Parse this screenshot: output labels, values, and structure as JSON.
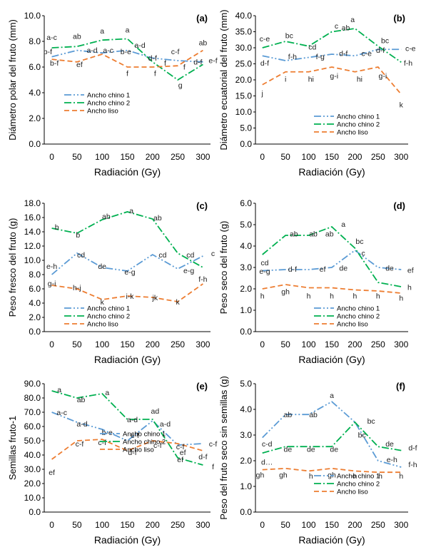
{
  "colors": {
    "chino1": "#5b9bd5",
    "chino2": "#00b050",
    "liso": "#ed7d31",
    "axis": "#000000"
  },
  "x_ticks": [
    0,
    50,
    100,
    150,
    200,
    250,
    300
  ],
  "chart_data": [
    {
      "id": "a",
      "type": "line",
      "panel_label": "(a)",
      "xlabel": "Radiación (Gy)",
      "ylabel": "Diámetro polar del fruto (mm)",
      "ylim": [
        0,
        10
      ],
      "yticks": [
        "0.0",
        "2.0",
        "4.0",
        "6.0",
        "8.0",
        "10.0"
      ],
      "x": [
        0,
        50,
        100,
        150,
        200,
        250,
        300
      ],
      "series": [
        {
          "name": "Ancho chino 1",
          "values": [
            6.8,
            7.3,
            7.1,
            7.3,
            6.7,
            6.5,
            6.4
          ]
        },
        {
          "name": "Ancho chino 2",
          "values": [
            7.5,
            7.6,
            8.1,
            8.2,
            6.4,
            5.0,
            6.2
          ]
        },
        {
          "name": "Ancho liso",
          "values": [
            6.6,
            6.4,
            7.0,
            6.0,
            6.0,
            6.1,
            7.3
          ]
        }
      ],
      "letters": [
        {
          "text": "a-c",
          "x": 0,
          "y": 8.1
        },
        {
          "text": "ab",
          "x": 50,
          "y": 8.2
        },
        {
          "text": "a",
          "x": 100,
          "y": 8.6
        },
        {
          "text": "a",
          "x": 150,
          "y": 8.7
        },
        {
          "text": "a-d",
          "x": 175,
          "y": 7.5
        },
        {
          "text": "c-f",
          "x": 245,
          "y": 7.0
        },
        {
          "text": "ab",
          "x": 300,
          "y": 7.7
        },
        {
          "text": "b-f",
          "x": -8,
          "y": 7.0
        },
        {
          "text": "a-d",
          "x": 80,
          "y": 7.1
        },
        {
          "text": "a-c",
          "x": 112,
          "y": 7.1
        },
        {
          "text": "b-e",
          "x": 147,
          "y": 7.0
        },
        {
          "text": "d-f",
          "x": 200,
          "y": 6.5
        },
        {
          "text": "f",
          "x": 225,
          "y": 6.1
        },
        {
          "text": "e-f",
          "x": 320,
          "y": 6.3
        },
        {
          "text": "d-f",
          "x": 290,
          "y": 6.2
        },
        {
          "text": "b-f",
          "x": 5,
          "y": 6.1
        },
        {
          "text": "ef",
          "x": 55,
          "y": 6.0
        },
        {
          "text": "f",
          "x": 150,
          "y": 5.3
        },
        {
          "text": "f",
          "x": 205,
          "y": 5.3
        },
        {
          "text": "g",
          "x": 255,
          "y": 4.4
        },
        {
          "text": "f",
          "x": 263,
          "y": 5.8
        }
      ],
      "legend": [
        "Ancho chino 1",
        "Ancho chino 2",
        "Ancho liso"
      ]
    },
    {
      "id": "b",
      "type": "line",
      "panel_label": "(b)",
      "xlabel": "Radiación (Gy)",
      "ylabel": "Diámetro ecuatorial del fruto (mm)",
      "ylim": [
        0,
        40
      ],
      "yticks": [
        "0.0",
        "5.0",
        "10.0",
        "15.0",
        "20.0",
        "25.0",
        "30.0",
        "35.0",
        "40.0"
      ],
      "x": [
        0,
        50,
        100,
        150,
        200,
        250,
        300
      ],
      "series": [
        {
          "name": "Ancho chino 1",
          "values": [
            27.5,
            26.0,
            27.0,
            28.0,
            27.5,
            29.5,
            29.5
          ]
        },
        {
          "name": "Ancho chino 2",
          "values": [
            30.0,
            32.0,
            30.5,
            35.0,
            36.0,
            30.5,
            25.5
          ]
        },
        {
          "name": "Ancho liso",
          "values": [
            18.5,
            22.5,
            22.5,
            24.0,
            22.5,
            24.0,
            15.5
          ]
        }
      ],
      "letters": [
        {
          "text": "c-e",
          "x": 5,
          "y": 32.0
        },
        {
          "text": "bc",
          "x": 58,
          "y": 33.0
        },
        {
          "text": "cd",
          "x": 108,
          "y": 29.5
        },
        {
          "text": "c",
          "x": 160,
          "y": 36.0
        },
        {
          "text": "ab",
          "x": 180,
          "y": 35.5
        },
        {
          "text": "a",
          "x": 195,
          "y": 38.0
        },
        {
          "text": "bc",
          "x": 265,
          "y": 31.5
        },
        {
          "text": "c-e",
          "x": 320,
          "y": 29.0
        },
        {
          "text": "d-f",
          "x": 255,
          "y": 28.5
        },
        {
          "text": "d-f",
          "x": 5,
          "y": 24.5
        },
        {
          "text": "f-h",
          "x": 65,
          "y": 26.5
        },
        {
          "text": "f-g",
          "x": 125,
          "y": 26.5
        },
        {
          "text": "d-f",
          "x": 175,
          "y": 27.5
        },
        {
          "text": "c-e",
          "x": 225,
          "y": 27.5
        },
        {
          "text": "f-h",
          "x": 315,
          "y": 24.5
        },
        {
          "text": "i",
          "x": 50,
          "y": 19.5
        },
        {
          "text": "hi",
          "x": 105,
          "y": 19.5
        },
        {
          "text": "g-i",
          "x": 155,
          "y": 20.5
        },
        {
          "text": "hi",
          "x": 210,
          "y": 19.5
        },
        {
          "text": "g-i",
          "x": 260,
          "y": 20.5
        },
        {
          "text": "j",
          "x": 0,
          "y": 15.0
        },
        {
          "text": "k",
          "x": 300,
          "y": 11.5
        }
      ],
      "legend": [
        "Ancho chino 1",
        "Ancho chino 2",
        "Ancho liso"
      ]
    },
    {
      "id": "c",
      "type": "line",
      "panel_label": "(c)",
      "xlabel": "Radiación (Gy)",
      "ylabel": "Peso fresco del fruto (g)",
      "ylim": [
        0,
        18
      ],
      "yticks": [
        "0.0",
        "2.0",
        "4.0",
        "6.0",
        "8.0",
        "10.0",
        "12.0",
        "14.0",
        "16.0",
        "18.0"
      ],
      "x": [
        0,
        50,
        100,
        150,
        200,
        250,
        300
      ],
      "series": [
        {
          "name": "Ancho chino 1",
          "values": [
            8.0,
            11.0,
            9.0,
            8.5,
            10.8,
            8.8,
            10.6
          ]
        },
        {
          "name": "Ancho chino 2",
          "values": [
            14.5,
            13.8,
            15.7,
            16.8,
            15.8,
            11.0,
            9.0
          ]
        },
        {
          "name": "Ancho liso",
          "values": [
            6.5,
            6.0,
            4.5,
            5.0,
            4.8,
            4.2,
            6.7
          ]
        }
      ],
      "letters": [
        {
          "text": "b",
          "x": 10,
          "y": 14.3
        },
        {
          "text": "b",
          "x": 52,
          "y": 13.2
        },
        {
          "text": "ab",
          "x": 108,
          "y": 15.8
        },
        {
          "text": "a",
          "x": 158,
          "y": 16.6
        },
        {
          "text": "ab",
          "x": 210,
          "y": 15.6
        },
        {
          "text": "cd",
          "x": 220,
          "y": 10.4
        },
        {
          "text": "cd",
          "x": 275,
          "y": 10.4
        },
        {
          "text": "c",
          "x": 320,
          "y": 10.6
        },
        {
          "text": "e-h",
          "x": 0,
          "y": 8.8
        },
        {
          "text": "cd",
          "x": 58,
          "y": 10.4
        },
        {
          "text": "de",
          "x": 100,
          "y": 8.8
        },
        {
          "text": "e-g",
          "x": 155,
          "y": 8.0
        },
        {
          "text": "e-g",
          "x": 272,
          "y": 8.2
        },
        {
          "text": "f-h",
          "x": 300,
          "y": 7.0
        },
        {
          "text": "g-i",
          "x": 0,
          "y": 6.4
        },
        {
          "text": "h-j",
          "x": 50,
          "y": 5.8
        },
        {
          "text": "k",
          "x": 100,
          "y": 3.8
        },
        {
          "text": "i-k",
          "x": 155,
          "y": 4.6
        },
        {
          "text": "jk",
          "x": 205,
          "y": 4.4
        },
        {
          "text": "k",
          "x": 250,
          "y": 3.8
        }
      ],
      "legend": [
        "Ancho chino 1",
        "Ancho chino 2",
        "Ancho liso"
      ]
    },
    {
      "id": "d",
      "type": "line",
      "panel_label": "(d)",
      "xlabel": "Radiación (Gy)",
      "ylabel": "Peso seco del fruto (g)",
      "ylim": [
        0,
        6
      ],
      "yticks": [
        "0.0",
        "1.0",
        "2.0",
        "3.0",
        "4.0",
        "5.0",
        "6.0"
      ],
      "x": [
        0,
        50,
        100,
        150,
        200,
        250,
        300
      ],
      "series": [
        {
          "name": "Ancho chino 1",
          "values": [
            2.85,
            2.9,
            2.9,
            3.0,
            3.8,
            3.0,
            2.9
          ]
        },
        {
          "name": "Ancho chino 2",
          "values": [
            3.6,
            4.5,
            4.5,
            4.9,
            3.9,
            2.3,
            2.1
          ]
        },
        {
          "name": "Ancho liso",
          "values": [
            2.0,
            2.2,
            2.05,
            2.05,
            1.95,
            1.9,
            1.8
          ]
        }
      ],
      "letters": [
        {
          "text": "cd",
          "x": 5,
          "y": 3.1
        },
        {
          "text": "ab",
          "x": 68,
          "y": 4.45
        },
        {
          "text": "ab",
          "x": 110,
          "y": 4.45
        },
        {
          "text": "ab",
          "x": 145,
          "y": 4.45
        },
        {
          "text": "a",
          "x": 175,
          "y": 4.9
        },
        {
          "text": "bc",
          "x": 210,
          "y": 4.1
        },
        {
          "text": "c",
          "x": 218,
          "y": 3.55
        },
        {
          "text": "de",
          "x": 275,
          "y": 2.85
        },
        {
          "text": "ef",
          "x": 320,
          "y": 2.75
        },
        {
          "text": "e-g",
          "x": 5,
          "y": 2.7
        },
        {
          "text": "d-f",
          "x": 65,
          "y": 2.8
        },
        {
          "text": "ef",
          "x": 130,
          "y": 2.8
        },
        {
          "text": "de",
          "x": 175,
          "y": 2.85
        },
        {
          "text": "h",
          "x": 0,
          "y": 1.55
        },
        {
          "text": "gh",
          "x": 50,
          "y": 1.75
        },
        {
          "text": "h",
          "x": 100,
          "y": 1.55
        },
        {
          "text": "h",
          "x": 150,
          "y": 1.55
        },
        {
          "text": "h",
          "x": 200,
          "y": 1.55
        },
        {
          "text": "h",
          "x": 250,
          "y": 1.55
        },
        {
          "text": "h",
          "x": 300,
          "y": 1.45
        },
        {
          "text": "h",
          "x": 318,
          "y": 1.95
        }
      ],
      "legend": [
        "Ancho chino 1",
        "Ancho chino 2",
        "Ancho liso"
      ]
    },
    {
      "id": "e",
      "type": "line",
      "panel_label": "(e)",
      "xlabel": "Radiación (Gy)",
      "ylabel": "Semillas fruto-1",
      "ylim": [
        0,
        90
      ],
      "yticks": [
        "0.0",
        "10.0",
        "20.0",
        "30.0",
        "40.0",
        "50.0",
        "60.0",
        "70.0",
        "80.0",
        "90.0"
      ],
      "x": [
        0,
        50,
        100,
        150,
        200,
        250,
        300
      ],
      "series": [
        {
          "name": "Ancho chino 1",
          "values": [
            70,
            63,
            58,
            50,
            64,
            47,
            48
          ]
        },
        {
          "name": "Ancho chino 2",
          "values": [
            85,
            80,
            83,
            65,
            65,
            38,
            33
          ]
        },
        {
          "name": "Ancho liso",
          "values": [
            37,
            50,
            51,
            43,
            50,
            48,
            43
          ]
        }
      ],
      "letters": [
        {
          "text": "a",
          "x": 15,
          "y": 84
        },
        {
          "text": "ab",
          "x": 58,
          "y": 77
        },
        {
          "text": "a",
          "x": 110,
          "y": 82
        },
        {
          "text": "a-d",
          "x": 160,
          "y": 63
        },
        {
          "text": "ad",
          "x": 205,
          "y": 69
        },
        {
          "text": "a-d",
          "x": 225,
          "y": 60
        },
        {
          "text": "a-c",
          "x": 20,
          "y": 68
        },
        {
          "text": "a-d",
          "x": 60,
          "y": 60
        },
        {
          "text": "b-e",
          "x": 110,
          "y": 54
        },
        {
          "text": "c-f",
          "x": 165,
          "y": 52
        },
        {
          "text": "d-f",
          "x": 160,
          "y": 40
        },
        {
          "text": "c-f",
          "x": 55,
          "y": 46
        },
        {
          "text": "c-f",
          "x": 100,
          "y": 47
        },
        {
          "text": "c-f",
          "x": 210,
          "y": 45
        },
        {
          "text": "c-f",
          "x": 255,
          "y": 44
        },
        {
          "text": "c-f",
          "x": 320,
          "y": 46
        },
        {
          "text": "ef",
          "x": 255,
          "y": 35
        },
        {
          "text": "d-f",
          "x": 300,
          "y": 37
        },
        {
          "text": "f",
          "x": 320,
          "y": 30
        },
        {
          "text": "ef",
          "x": 0,
          "y": 26
        },
        {
          "text": "ef",
          "x": 260,
          "y": 40
        }
      ],
      "legend": [
        "Ancho chino 1",
        "Ancho chino 2",
        "Ancho liso"
      ]
    },
    {
      "id": "f",
      "type": "line",
      "panel_label": "(f)",
      "xlabel": "Radiación (Gy)",
      "ylabel": "Peso del fruto seco sin semillas (g)",
      "ylim": [
        0,
        5
      ],
      "yticks": [
        "0.0",
        "1.0",
        "2.0",
        "3.0",
        "4.0",
        "5.0"
      ],
      "x": [
        0,
        50,
        100,
        150,
        200,
        250,
        300
      ],
      "series": [
        {
          "name": "Ancho chino 1",
          "values": [
            2.9,
            3.8,
            3.8,
            4.3,
            3.5,
            2.0,
            1.75
          ]
        },
        {
          "name": "Ancho chino 2",
          "values": [
            2.3,
            2.55,
            2.55,
            2.55,
            3.5,
            2.55,
            2.4
          ]
        },
        {
          "name": "Ancho liso",
          "values": [
            1.65,
            1.7,
            1.6,
            1.7,
            1.6,
            1.55,
            1.55
          ]
        }
      ],
      "letters": [
        {
          "text": "a",
          "x": 150,
          "y": 4.45
        },
        {
          "text": "ab",
          "x": 55,
          "y": 3.7
        },
        {
          "text": "ab",
          "x": 110,
          "y": 3.7
        },
        {
          "text": "bc",
          "x": 235,
          "y": 3.45
        },
        {
          "text": "bc",
          "x": 215,
          "y": 2.9
        },
        {
          "text": "de",
          "x": 275,
          "y": 2.55
        },
        {
          "text": "d-f",
          "x": 325,
          "y": 2.4
        },
        {
          "text": "c-d",
          "x": 10,
          "y": 2.55
        },
        {
          "text": "de",
          "x": 55,
          "y": 2.35
        },
        {
          "text": "de",
          "x": 105,
          "y": 2.35
        },
        {
          "text": "de",
          "x": 155,
          "y": 2.35
        },
        {
          "text": "e-h",
          "x": 280,
          "y": 1.95
        },
        {
          "text": "f-h",
          "x": 325,
          "y": 1.75
        },
        {
          "text": "d…",
          "x": 10,
          "y": 1.85
        },
        {
          "text": "gh",
          "x": -5,
          "y": 1.35
        },
        {
          "text": "gh",
          "x": 45,
          "y": 1.35
        },
        {
          "text": "h",
          "x": 105,
          "y": 1.3
        },
        {
          "text": "gh",
          "x": 150,
          "y": 1.35
        },
        {
          "text": "h",
          "x": 200,
          "y": 1.3
        },
        {
          "text": "h",
          "x": 255,
          "y": 1.3
        },
        {
          "text": "h",
          "x": 300,
          "y": 1.3
        }
      ],
      "legend": [
        "Ancho chino 1",
        "Ancho chino 2",
        "Ancho liso"
      ]
    }
  ]
}
